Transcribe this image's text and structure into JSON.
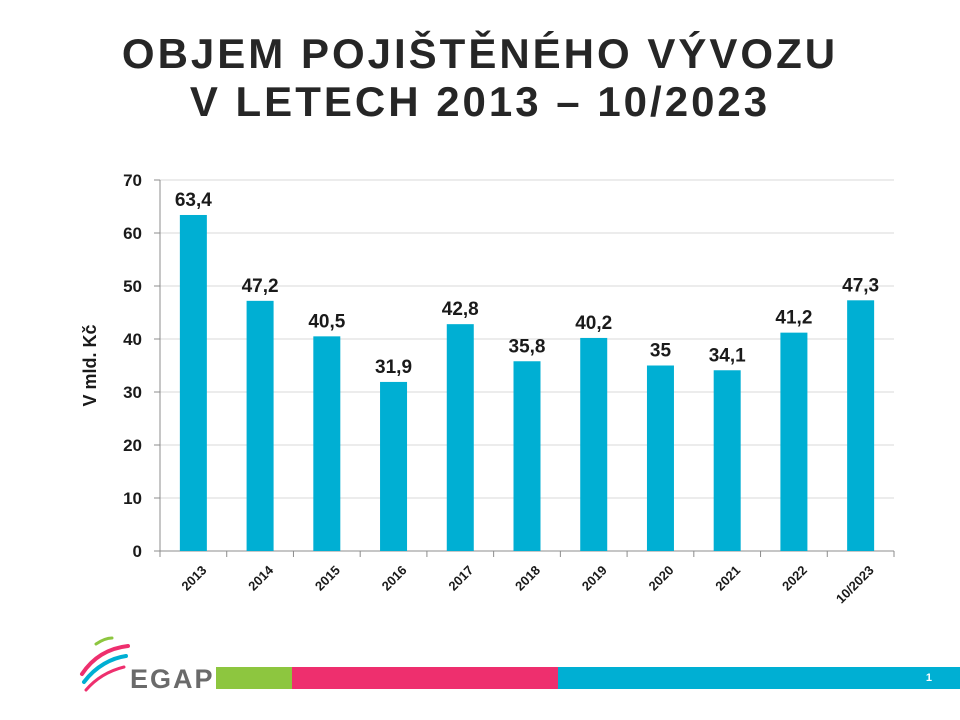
{
  "title": {
    "line1": "OBJEM POJIŠTĚNÉHO VÝVOZU",
    "line2": "V LETECH 2013 – 10/2023"
  },
  "chart_data": {
    "type": "bar",
    "categories": [
      "2013",
      "2014",
      "2015",
      "2016",
      "2017",
      "2018",
      "2019",
      "2020",
      "2021",
      "2022",
      "10/2023"
    ],
    "values": [
      63.4,
      47.2,
      40.5,
      31.9,
      42.8,
      35.8,
      40.2,
      35,
      34.1,
      41.2,
      47.3
    ],
    "value_labels": [
      "63,4",
      "47,2",
      "40,5",
      "31,9",
      "42,8",
      "35,8",
      "40,2",
      "35",
      "34,1",
      "41,2",
      "47,3"
    ],
    "ylabel": "V mld. Kč",
    "xlabel": "",
    "ylim": [
      0,
      70
    ],
    "yticks": [
      0,
      10,
      20,
      30,
      40,
      50,
      60,
      70
    ],
    "grid": true,
    "legend": "none",
    "bar_color": "#00AFD3"
  },
  "footer": {
    "logo_text": "EGAP",
    "page_number": "1",
    "colors": {
      "green": "#8DC63F",
      "pink": "#EE2F6E",
      "blue": "#00AFD3"
    }
  }
}
